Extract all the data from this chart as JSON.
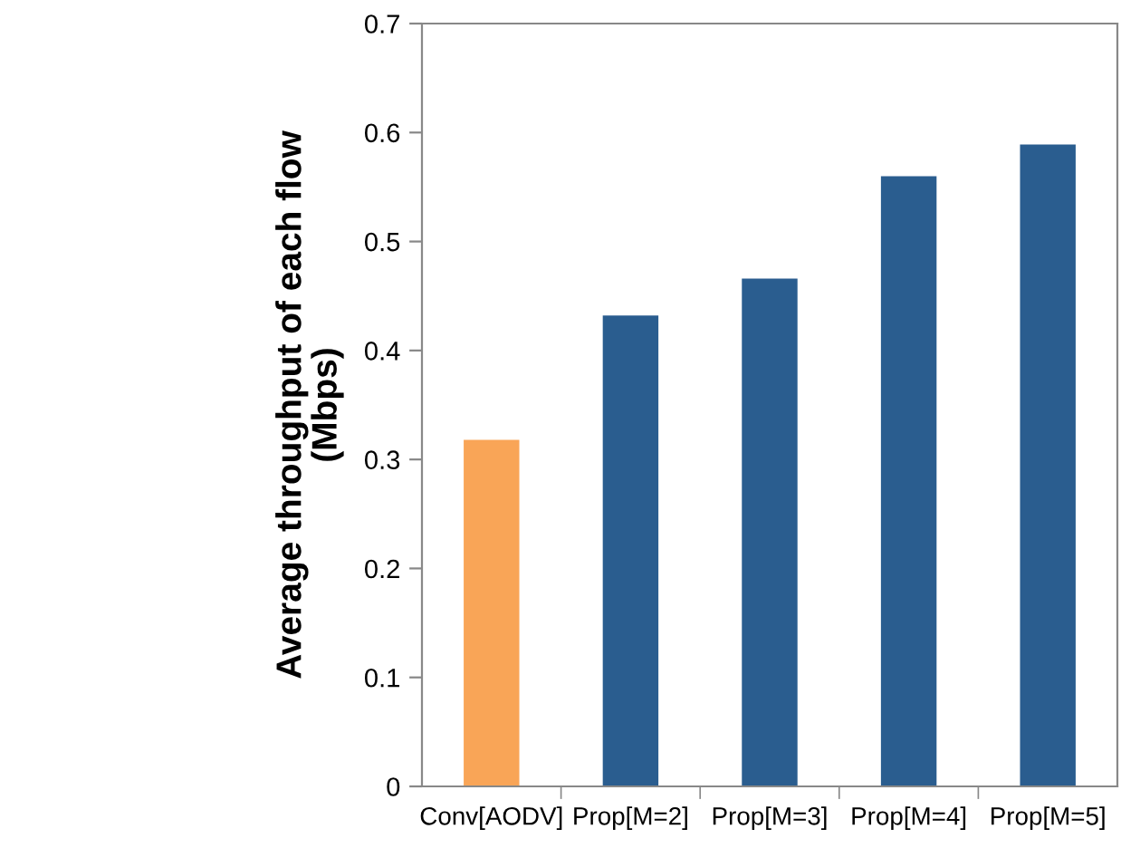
{
  "chart_data": {
    "type": "bar",
    "ylabel": "Average throughput of each flow\n(Mbps)",
    "categories": [
      "Conv[AODV]",
      "Prop[M=2]",
      "Prop[M=3]",
      "Prop[M=4]",
      "Prop[M=5]"
    ],
    "values": [
      0.318,
      0.432,
      0.466,
      0.56,
      0.589
    ],
    "colors": [
      "#f9a557",
      "#2a5d8f",
      "#2a5d8f",
      "#2a5d8f",
      "#2a5d8f"
    ],
    "ylim": [
      0,
      0.7
    ],
    "yticks": [
      0,
      0.1,
      0.2,
      0.3,
      0.4,
      0.5,
      0.6,
      0.7
    ],
    "grid": false
  }
}
